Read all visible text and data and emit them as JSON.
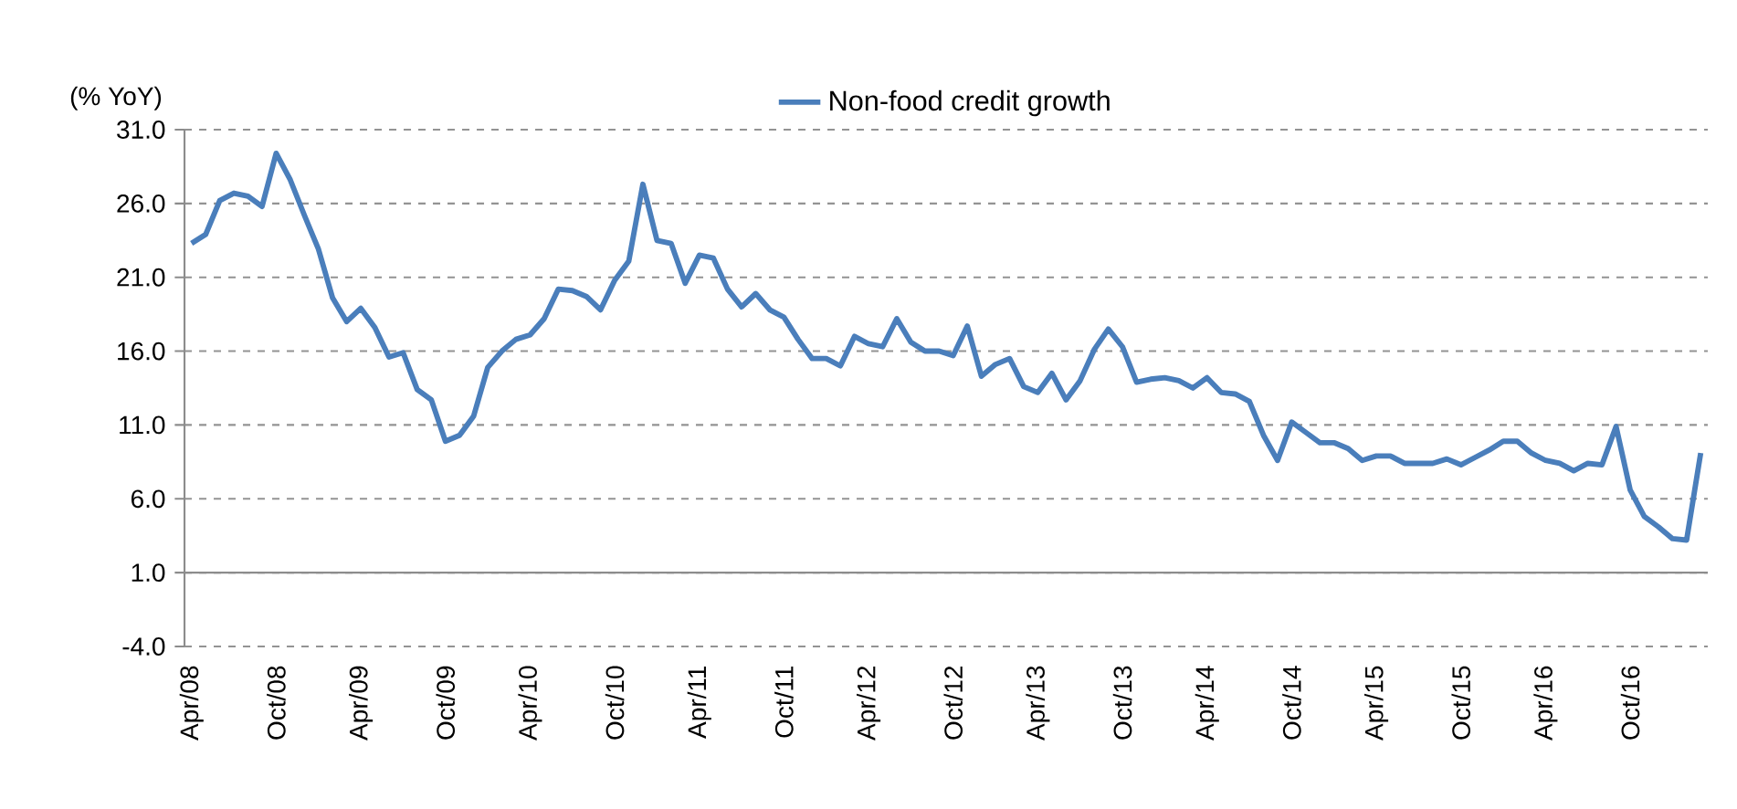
{
  "chart_data": {
    "type": "line",
    "ylabel": "(% YoY)",
    "categories": [
      "Apr/08",
      null,
      null,
      null,
      null,
      null,
      "Oct/08",
      null,
      null,
      null,
      null,
      null,
      "Apr/09",
      null,
      null,
      null,
      null,
      null,
      "Oct/09",
      null,
      null,
      null,
      null,
      null,
      "Apr/10",
      null,
      null,
      null,
      null,
      null,
      "Oct/10",
      null,
      null,
      null,
      null,
      null,
      "Apr/11",
      null,
      null,
      null,
      null,
      null,
      "Oct/11",
      null,
      null,
      null,
      null,
      null,
      "Apr/12",
      null,
      null,
      null,
      null,
      null,
      "Oct/12",
      null,
      null,
      null,
      null,
      null,
      "Apr/13",
      null,
      null,
      null,
      null,
      null,
      "Oct/13",
      null,
      null,
      null,
      null,
      null,
      "Apr/14",
      null,
      null,
      null,
      null,
      null,
      "Oct/14",
      null,
      null,
      null,
      null,
      null,
      "Apr/15",
      null,
      null,
      null,
      null,
      null,
      "Oct/15",
      null,
      null,
      null,
      null,
      null,
      "Apr/16",
      null,
      null,
      null,
      null,
      null,
      "Oct/16",
      null,
      null,
      null,
      null,
      null
    ],
    "series": [
      {
        "name": "Non-food credit growth",
        "color": "#4a7ebb",
        "values": [
          23.3,
          23.9,
          26.2,
          26.7,
          26.5,
          25.8,
          29.4,
          27.6,
          25.2,
          22.9,
          19.6,
          18.0,
          18.9,
          17.6,
          15.6,
          15.9,
          13.4,
          12.7,
          9.9,
          10.3,
          11.6,
          14.9,
          16.0,
          16.8,
          17.1,
          18.2,
          20.2,
          20.1,
          19.7,
          18.8,
          20.8,
          22.1,
          27.3,
          23.5,
          23.3,
          20.6,
          22.5,
          22.3,
          20.2,
          19.0,
          19.9,
          18.8,
          18.3,
          16.8,
          15.5,
          15.5,
          15.0,
          17.0,
          16.5,
          16.3,
          18.2,
          16.6,
          16.0,
          16.0,
          15.7,
          17.7,
          14.3,
          15.1,
          15.5,
          13.6,
          13.2,
          14.5,
          12.7,
          14.0,
          16.1,
          17.5,
          16.3,
          13.9,
          14.1,
          14.2,
          14.0,
          13.5,
          14.2,
          13.2,
          13.1,
          12.6,
          10.3,
          8.6,
          11.2,
          10.5,
          9.8,
          9.8,
          9.4,
          8.6,
          8.9,
          8.9,
          8.4,
          8.4,
          8.4,
          8.7,
          8.3,
          8.8,
          9.3,
          9.9,
          9.9,
          9.1,
          8.6,
          8.4,
          7.9,
          8.4,
          8.3,
          10.9,
          6.6,
          4.8,
          4.1,
          3.3,
          3.2,
          9.1
        ]
      }
    ],
    "ylim": [
      -4,
      31
    ],
    "yticks": [
      {
        "value": -4,
        "label": "-4.0"
      },
      {
        "value": 1,
        "label": "1.0"
      },
      {
        "value": 6,
        "label": "6.0"
      },
      {
        "value": 11,
        "label": "11.0"
      },
      {
        "value": 16,
        "label": "16.0"
      },
      {
        "value": 21,
        "label": "21.0"
      },
      {
        "value": 26,
        "label": "26.0"
      },
      {
        "value": 31,
        "label": "31.0"
      }
    ],
    "ref_lines": [
      {
        "axis": "y",
        "value": 1,
        "color": "#8c8c8c"
      }
    ],
    "grid": "y",
    "legend": "top",
    "marker": "none",
    "line_style": "solid"
  }
}
